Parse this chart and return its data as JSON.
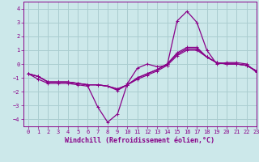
{
  "title": "",
  "xlabel": "Windchill (Refroidissement éolien,°C)",
  "ylabel": "",
  "xlim": [
    -0.5,
    23
  ],
  "ylim": [
    -4.5,
    4.5
  ],
  "xticks": [
    0,
    1,
    2,
    3,
    4,
    5,
    6,
    7,
    8,
    9,
    10,
    11,
    12,
    13,
    14,
    15,
    16,
    17,
    18,
    19,
    20,
    21,
    22,
    23
  ],
  "yticks": [
    -4,
    -3,
    -2,
    -1,
    0,
    1,
    2,
    3,
    4
  ],
  "bg_color": "#cce8ea",
  "grid_color": "#aacdd0",
  "line_color": "#880088",
  "series": [
    [
      0,
      1,
      2,
      3,
      4,
      5,
      6,
      7,
      8,
      9,
      10,
      11,
      12,
      13,
      14,
      15,
      16,
      17,
      18,
      19,
      20,
      21,
      22,
      23
    ],
    [
      -0.7,
      -1.1,
      -1.4,
      -1.4,
      -1.4,
      -1.5,
      -1.6,
      -3.1,
      -4.2,
      -3.6,
      -1.4,
      -0.3,
      0.0,
      -0.2,
      -0.1,
      3.1,
      3.8,
      3.0,
      1.0,
      0.0,
      0.1,
      0.1,
      0.0,
      -0.6
    ],
    [
      -0.7,
      -0.9,
      -1.3,
      -1.3,
      -1.3,
      -1.4,
      -1.5,
      -1.5,
      -1.6,
      -1.8,
      -1.5,
      -1.1,
      -0.8,
      -0.5,
      -0.1,
      0.6,
      1.0,
      1.0,
      0.5,
      0.1,
      0.0,
      0.0,
      -0.1,
      -0.5
    ],
    [
      -0.7,
      -0.9,
      -1.3,
      -1.3,
      -1.3,
      -1.4,
      -1.5,
      -1.5,
      -1.6,
      -1.8,
      -1.5,
      -1.0,
      -0.7,
      -0.4,
      0.0,
      0.7,
      1.1,
      1.1,
      0.5,
      0.1,
      0.0,
      0.0,
      -0.1,
      -0.5
    ],
    [
      -0.7,
      -0.9,
      -1.3,
      -1.3,
      -1.3,
      -1.4,
      -1.5,
      -1.5,
      -1.6,
      -1.9,
      -1.5,
      -1.0,
      -0.7,
      -0.4,
      0.0,
      0.8,
      1.2,
      1.2,
      0.5,
      0.1,
      0.0,
      0.0,
      -0.1,
      -0.5
    ]
  ],
  "marker": "+",
  "markersize": 3,
  "linewidth": 0.9,
  "tick_fontsize": 5,
  "xlabel_fontsize": 6
}
